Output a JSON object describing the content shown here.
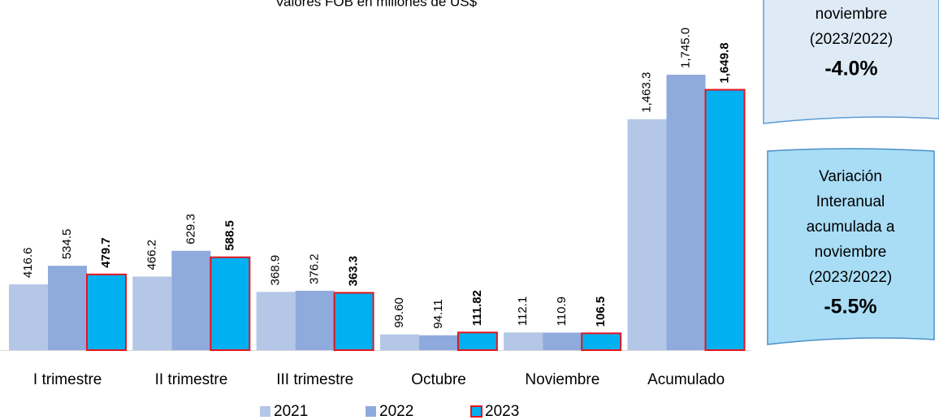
{
  "chart_data": {
    "type": "bar",
    "title": "Valores FOB en millones de US$",
    "categories": [
      "I trimestre",
      "II trimestre",
      "III trimestre",
      "Octubre",
      "Noviembre",
      "Acumulado"
    ],
    "series": [
      {
        "name": "2021",
        "color": "#b4c7e7",
        "values": [
          416.6,
          466.2,
          368.9,
          99.6,
          112.1,
          1463.3
        ],
        "value_labels": [
          "416.6",
          "466.2",
          "368.9",
          "99.60",
          "112.1",
          "1,463.3"
        ]
      },
      {
        "name": "2022",
        "color": "#8faadc",
        "values": [
          534.5,
          629.3,
          376.2,
          94.11,
          110.9,
          1745.0
        ],
        "value_labels": [
          "534.5",
          "629.3",
          "376.2",
          "94.11",
          "110.9",
          "1,745.0"
        ]
      },
      {
        "name": "2023",
        "color": "#00b0f0",
        "edgecolor": "#e8141c",
        "bold_labels": true,
        "values": [
          479.7,
          588.5,
          363.3,
          111.82,
          106.5,
          1649.8
        ],
        "value_labels": [
          "479.7",
          "588.5",
          "363.3",
          "111.82",
          "106.5",
          "1,649.8"
        ]
      }
    ],
    "legend": "bottom",
    "annotations": [
      {
        "lines": [
          "noviembre",
          "(2023/2022)"
        ],
        "value": "-4.0%"
      },
      {
        "lines": [
          "Variación",
          "Interanual",
          "acumulada a",
          "noviembre",
          "(2023/2022)"
        ],
        "value": "-5.5%"
      }
    ]
  }
}
